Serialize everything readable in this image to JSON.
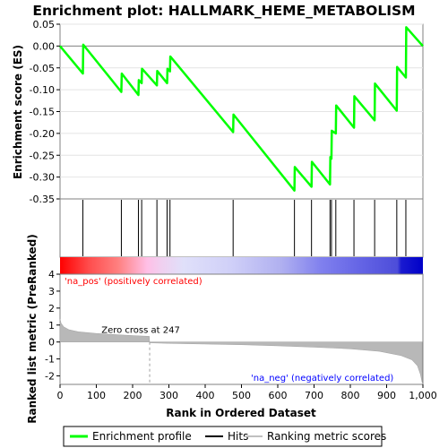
{
  "chart_data": {
    "title": "Enrichment plot: HALLMARK_HEME_METABOLISM",
    "type": "line",
    "xlabel": "Rank in Ordered Dataset",
    "x_ticks": [
      0,
      100,
      200,
      300,
      400,
      500,
      600,
      700,
      800,
      900,
      "1,000"
    ],
    "xlim": [
      0,
      1000
    ],
    "es_panel": {
      "ylabel": "Enrichment score (ES)",
      "ylim": [
        -0.35,
        0.05
      ],
      "y_ticks": [
        "0.05",
        "0.00",
        "-0.05",
        "-0.10",
        "-0.15",
        "-0.20",
        "-0.25",
        "-0.30",
        "-0.35"
      ],
      "zero_line": true,
      "series": [
        {
          "name": "Enrichment profile",
          "color": "#00ff00",
          "x": [
            0,
            63,
            64,
            169,
            170,
            216,
            217,
            225,
            226,
            267,
            268,
            295,
            296,
            303,
            304,
            477,
            478,
            646,
            647,
            693,
            694,
            744,
            745,
            748,
            749,
            760,
            761,
            810,
            811,
            867,
            868,
            928,
            929,
            953,
            954,
            1000
          ],
          "y": [
            0.0,
            -0.063,
            0.003,
            -0.105,
            -0.063,
            -0.112,
            -0.078,
            -0.085,
            -0.052,
            -0.09,
            -0.057,
            -0.085,
            -0.052,
            -0.058,
            -0.024,
            -0.197,
            -0.157,
            -0.331,
            -0.277,
            -0.322,
            -0.265,
            -0.317,
            -0.254,
            -0.258,
            -0.194,
            -0.2,
            -0.136,
            -0.187,
            -0.115,
            -0.17,
            -0.086,
            -0.148,
            -0.048,
            -0.072,
            0.043,
            0.0
          ]
        }
      ]
    },
    "hits_panel": {
      "series_name": "Hits",
      "hit_ranks": [
        63,
        169,
        216,
        225,
        267,
        295,
        303,
        477,
        646,
        693,
        744,
        748,
        760,
        810,
        867,
        928,
        953
      ]
    },
    "metric_panel": {
      "ylabel": "Ranked list metric (PreRanked)",
      "ylim": [
        -2.5,
        4
      ],
      "y_ticks": [
        "4",
        "3",
        "2",
        "1",
        "0",
        "-1",
        "-2"
      ],
      "series_name": "Ranking metric scores",
      "zero_cross_label": "Zero cross at 247",
      "zero_cross_rank": 247,
      "pos_label": "'na_pos' (positively correlated)",
      "neg_label": "'na_neg' (negatively correlated)",
      "pos_color": "#ff0000",
      "neg_color": "#0000ff",
      "profile": [
        {
          "rank": 0,
          "value": 1.35
        },
        {
          "rank": 3,
          "value": 1.1
        },
        {
          "rank": 10,
          "value": 0.9
        },
        {
          "rank": 25,
          "value": 0.72
        },
        {
          "rank": 50,
          "value": 0.6
        },
        {
          "rank": 100,
          "value": 0.5
        },
        {
          "rank": 150,
          "value": 0.44
        },
        {
          "rank": 200,
          "value": 0.38
        },
        {
          "rank": 246,
          "value": 0.33
        },
        {
          "rank": 247,
          "value": -0.05
        },
        {
          "rank": 300,
          "value": -0.08
        },
        {
          "rank": 400,
          "value": -0.12
        },
        {
          "rank": 500,
          "value": -0.16
        },
        {
          "rank": 600,
          "value": -0.22
        },
        {
          "rank": 700,
          "value": -0.3
        },
        {
          "rank": 800,
          "value": -0.4
        },
        {
          "rank": 880,
          "value": -0.55
        },
        {
          "rank": 940,
          "value": -0.8
        },
        {
          "rank": 970,
          "value": -1.05
        },
        {
          "rank": 985,
          "value": -1.4
        },
        {
          "rank": 993,
          "value": -1.9
        },
        {
          "rank": 998,
          "value": -2.4
        }
      ]
    },
    "legend": {
      "placement": "bottom",
      "items": [
        {
          "label": "Enrichment profile",
          "color": "#00ff00"
        },
        {
          "label": "Hits",
          "color": "#000000"
        },
        {
          "label": "Ranking metric scores",
          "color": "#c0c0c0"
        }
      ]
    }
  }
}
